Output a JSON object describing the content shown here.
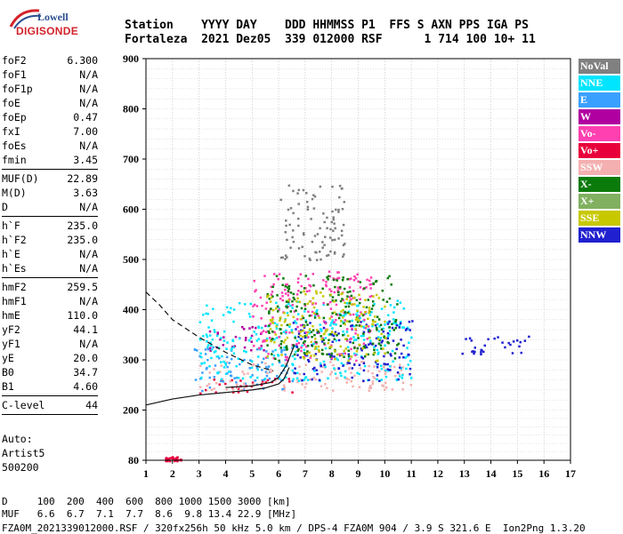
{
  "logo": {
    "line1": "Lowell",
    "line2": "DIGISONDE"
  },
  "header": {
    "row1": "Station    YYYY DAY    DDD HHMMSS P1  FFS S AXN PPS IGA PS",
    "row2": "Fortaleza  2021 Dez05  339 012000 RSF      1 714 100 10+ 11"
  },
  "params": [
    {
      "k": "foF2",
      "v": "6.300"
    },
    {
      "k": "foF1",
      "v": "N/A"
    },
    {
      "k": "foF1p",
      "v": "N/A"
    },
    {
      "k": "foE",
      "v": "N/A"
    },
    {
      "k": "foEp",
      "v": "0.47"
    },
    {
      "k": "fxI",
      "v": "7.00"
    },
    {
      "k": "foEs",
      "v": "N/A"
    },
    {
      "k": "fmin",
      "v": "3.45"
    },
    {
      "sep": true
    },
    {
      "k": "MUF(D)",
      "v": "22.89"
    },
    {
      "k": "M(D)",
      "v": "3.63"
    },
    {
      "k": "D",
      "v": "N/A"
    },
    {
      "sep": true
    },
    {
      "k": "h`F",
      "v": "235.0"
    },
    {
      "k": "h`F2",
      "v": "235.0"
    },
    {
      "k": "h`E",
      "v": "N/A"
    },
    {
      "k": "h`Es",
      "v": "N/A"
    },
    {
      "sep": true
    },
    {
      "k": "hmF2",
      "v": "259.5"
    },
    {
      "k": "hmF1",
      "v": "N/A"
    },
    {
      "k": "hmE",
      "v": "110.0"
    },
    {
      "k": "yF2",
      "v": "44.1"
    },
    {
      "k": "yF1",
      "v": "N/A"
    },
    {
      "k": "yE",
      "v": "20.0"
    },
    {
      "k": "B0",
      "v": "34.7"
    },
    {
      "k": "B1",
      "v": "4.60"
    },
    {
      "sep": true
    },
    {
      "k": "C-level",
      "v": "44"
    },
    {
      "sep": true
    }
  ],
  "auto": {
    "l1": "Auto:",
    "l2": "Artist5",
    "l3": "500200"
  },
  "footer": {
    "d_row": "D     100  200  400  600  800 1000 1500 3000 [km]",
    "muf_row": "MUF   6.6  6.7  7.1  7.7  8.6  9.8 13.4 22.9 [MHz]",
    "file_row": "FZA0M_2021339012000.RSF / 320fx256h 50 kHz 5.0 km / DPS-4 FZA0M 904 / 3.9 S 321.6 E  Ion2Png 1.3.20"
  },
  "legend": [
    {
      "label": "NoVal",
      "color": "#808080"
    },
    {
      "label": "NNE",
      "color": "#00e5ff"
    },
    {
      "label": "E",
      "color": "#3aa0ff"
    },
    {
      "label": "W",
      "color": "#b000a0"
    },
    {
      "label": "Vo-",
      "color": "#ff40b0"
    },
    {
      "label": "Vo+",
      "color": "#e8003c"
    },
    {
      "label": "SSW",
      "color": "#f4b0b0"
    },
    {
      "label": "X-",
      "color": "#0a7a0a"
    },
    {
      "label": "X+",
      "color": "#80b060"
    },
    {
      "label": "SSE",
      "color": "#c8c800"
    },
    {
      "label": "NNW",
      "color": "#2020d0"
    }
  ],
  "chart_data": {
    "type": "scatter",
    "title": "",
    "xlabel": "",
    "ylabel": "",
    "xlim": [
      1,
      17
    ],
    "ylim": [
      80,
      900
    ],
    "xticks": [
      1,
      2,
      3,
      4,
      5,
      6,
      7,
      8,
      9,
      10,
      11,
      12,
      13,
      14,
      15,
      16,
      17
    ],
    "yticks": [
      80,
      200,
      300,
      400,
      500,
      600,
      700,
      800,
      900
    ],
    "grid": true,
    "legend_position": "right",
    "clusters": [
      {
        "name": "E",
        "x": [
          2.8,
          6.5
        ],
        "y": [
          240,
          330
        ]
      },
      {
        "name": "W",
        "x": [
          3.2,
          5.5
        ],
        "y": [
          320,
          370
        ]
      },
      {
        "name": "Vo+",
        "x": [
          3.0,
          6.5
        ],
        "y": [
          235,
          265
        ]
      },
      {
        "name": "SSW",
        "x": [
          3.0,
          11.0
        ],
        "y": [
          240,
          300
        ]
      },
      {
        "name": "NNE",
        "x": [
          3.0,
          11.0
        ],
        "y": [
          260,
          420
        ]
      },
      {
        "name": "NNW",
        "x": [
          6.5,
          11.0
        ],
        "y": [
          260,
          380
        ]
      },
      {
        "name": "NNW",
        "x": [
          12.8,
          15.5
        ],
        "y": [
          310,
          350
        ]
      },
      {
        "name": "Vo-",
        "x": [
          5.0,
          9.5
        ],
        "y": [
          300,
          480
        ]
      },
      {
        "name": "X-",
        "x": [
          5.5,
          10.5
        ],
        "y": [
          300,
          470
        ]
      },
      {
        "name": "SSE",
        "x": [
          5.5,
          10.0
        ],
        "y": [
          300,
          440
        ]
      },
      {
        "name": "NoVal",
        "x": [
          6.0,
          8.5
        ],
        "y": [
          500,
          650
        ]
      },
      {
        "name": "Vo+",
        "x": [
          1.7,
          2.3
        ],
        "y": [
          80,
          90
        ]
      }
    ],
    "profile_curve": {
      "x": [
        1.0,
        2.0,
        3.0,
        4.0,
        5.0,
        5.5,
        6.0,
        6.2,
        6.4
      ],
      "y": [
        210,
        222,
        230,
        235,
        240,
        244,
        252,
        262,
        285
      ]
    },
    "profile_dashed": {
      "x": [
        1.0,
        1.5,
        2.0,
        3.0,
        4.0,
        5.0,
        5.8
      ],
      "y": [
        435,
        410,
        380,
        345,
        315,
        290,
        278
      ]
    },
    "profile_upper": {
      "x": [
        4.0,
        5.0,
        5.7,
        6.0,
        6.3,
        6.6
      ],
      "y": [
        245,
        248,
        255,
        265,
        290,
        330
      ]
    }
  }
}
